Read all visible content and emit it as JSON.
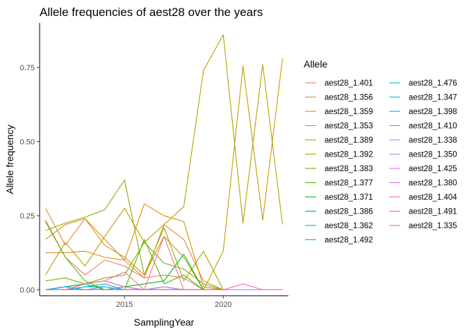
{
  "chart_data": {
    "type": "line",
    "title": "Allele frequencies of aest28 over the years",
    "xlabel": "SamplingYear",
    "ylabel": "Allele frequency",
    "xlim": [
      2010.7,
      2023.3
    ],
    "ylim": [
      -0.02,
      0.9
    ],
    "x_ticks": [
      2015,
      2020
    ],
    "x_tick_labels": [
      "2015",
      "2020"
    ],
    "y_ticks": [
      0,
      0.25,
      0.5,
      0.75
    ],
    "y_tick_labels": [
      "0.00",
      "0.25",
      "0.50",
      "0.75"
    ],
    "grid": false,
    "legend": {
      "title": "Allele",
      "position": "right",
      "columns": 2
    },
    "x": [
      2011,
      2012,
      2013,
      2014,
      2015,
      2016,
      2017,
      2018,
      2019,
      2020,
      2021,
      2022,
      2023
    ],
    "series": [
      {
        "name": "aest28_1.401",
        "color": "#F8766D",
        "values": [
          0.235,
          0.11,
          0.05,
          0.1,
          0.08,
          0.04,
          0.05,
          0.04,
          0.0,
          0.0,
          null,
          null,
          null
        ]
      },
      {
        "name": "aest28_1.356",
        "color": "#EA8331",
        "values": [
          0.275,
          0.15,
          0.24,
          0.17,
          0.1,
          0.04,
          0.22,
          0.17,
          0.03,
          0.0,
          null,
          null,
          null
        ]
      },
      {
        "name": "aest28_1.359",
        "color": "#DB8E00",
        "values": [
          0.125,
          0.125,
          0.13,
          0.11,
          0.1,
          0.29,
          0.25,
          0.23,
          0.01,
          0.0,
          null,
          null,
          null
        ]
      },
      {
        "name": "aest28_1.353",
        "color": "#C99800",
        "values": [
          0.17,
          0.22,
          0.24,
          0.15,
          0.11,
          0.05,
          0.18,
          0.11,
          0.0,
          0.13,
          0.755,
          0.235,
          0.78
        ]
      },
      {
        "name": "aest28_1.389",
        "color": "#B4A000",
        "values": [
          0.05,
          0.16,
          0.08,
          0.18,
          0.275,
          0.16,
          0.22,
          0.28,
          0.74,
          0.86,
          0.225,
          0.76,
          0.22
        ]
      },
      {
        "name": "aest28_1.392",
        "color": "#9AA800",
        "values": [
          0.2,
          0.225,
          0.245,
          0.27,
          0.37,
          0.05,
          0.21,
          0.03,
          0.13,
          0.0,
          null,
          null,
          null
        ]
      },
      {
        "name": "aest28_1.383",
        "color": "#7CAE00",
        "values": [
          0.03,
          0.04,
          0.02,
          0.04,
          0.05,
          0.16,
          0.09,
          0.07,
          0.02,
          0.0,
          null,
          null,
          null
        ]
      },
      {
        "name": "aest28_1.377",
        "color": "#53B400",
        "values": [
          0.23,
          0.11,
          0.03,
          0.0,
          0.0,
          0.17,
          0.02,
          0.05,
          0.0,
          0.0,
          null,
          null,
          null
        ]
      },
      {
        "name": "aest28_1.371",
        "color": "#00B81F",
        "values": [
          0.0,
          0.01,
          0.02,
          0.03,
          0.01,
          0.02,
          0.03,
          0.12,
          0.0,
          0.0,
          null,
          null,
          null
        ]
      },
      {
        "name": "aest28_1.386",
        "color": "#00BC59",
        "values": [
          0.0,
          0.01,
          0.02,
          0.0,
          0.01,
          0.0,
          0.01,
          0.0,
          0.0,
          0.0,
          null,
          null,
          null
        ]
      },
      {
        "name": "aest28_1.362",
        "color": "#00C08B",
        "values": [
          0.0,
          0.0,
          0.01,
          0.01,
          0.0,
          0.0,
          0.0,
          0.0,
          0.0,
          0.0,
          null,
          null,
          null
        ]
      },
      {
        "name": "aest28_1.492",
        "color": "#00C0B3",
        "values": [
          0.0,
          0.01,
          0.0,
          0.0,
          0.0,
          0.0,
          0.0,
          0.0,
          0.0,
          0.0,
          null,
          null,
          null
        ]
      },
      {
        "name": "aest28_1.476",
        "color": "#00BCD6",
        "values": [
          0.0,
          0.0,
          0.01,
          0.02,
          0.0,
          0.0,
          0.0,
          0.0,
          0.0,
          0.0,
          null,
          null,
          null
        ]
      },
      {
        "name": "aest28_1.347",
        "color": "#00B4EF",
        "values": [
          0.0,
          0.0,
          0.0,
          0.0,
          0.0,
          0.0,
          0.0,
          0.0,
          0.0,
          0.0,
          null,
          null,
          null
        ]
      },
      {
        "name": "aest28_1.398",
        "color": "#00A9FF",
        "values": [
          0.0,
          0.01,
          0.0,
          0.01,
          0.0,
          0.0,
          0.0,
          0.0,
          0.0,
          0.0,
          null,
          null,
          null
        ]
      },
      {
        "name": "aest28_1.410",
        "color": "#619CFF",
        "values": [
          0.0,
          0.0,
          0.0,
          0.01,
          0.0,
          0.0,
          0.0,
          0.0,
          0.0,
          0.0,
          null,
          null,
          null
        ]
      },
      {
        "name": "aest28_1.338",
        "color": "#9F8CFF",
        "values": [
          0.0,
          0.0,
          0.0,
          0.0,
          0.0,
          0.0,
          0.01,
          0.0,
          0.0,
          0.0,
          null,
          null,
          null
        ]
      },
      {
        "name": "aest28_1.350",
        "color": "#C77CFF",
        "values": [
          0.0,
          0.0,
          0.0,
          0.0,
          0.0,
          0.0,
          0.0,
          0.0,
          0.0,
          0.0,
          0.0,
          0.0,
          0.0
        ]
      },
      {
        "name": "aest28_1.425",
        "color": "#E56EF7",
        "values": [
          0.0,
          0.0,
          0.0,
          0.0,
          0.0,
          0.0,
          0.0,
          0.0,
          0.0,
          0.0,
          null,
          null,
          null
        ]
      },
      {
        "name": "aest28_1.380",
        "color": "#F763E0",
        "values": [
          0.0,
          0.0,
          0.02,
          0.03,
          0.01,
          0.0,
          0.0,
          0.0,
          0.0,
          0.0,
          null,
          null,
          null
        ]
      },
      {
        "name": "aest28_1.404",
        "color": "#FF62BC",
        "values": [
          0.0,
          0.0,
          0.0,
          0.0,
          0.0,
          0.0,
          0.0,
          0.0,
          0.0,
          0.0,
          0.02,
          0.0,
          0.0
        ]
      },
      {
        "name": "aest28_1.491",
        "color": "#FF6C91",
        "values": [
          0.0,
          0.0,
          0.0,
          0.0,
          0.0,
          0.0,
          0.0,
          0.0,
          0.0,
          0.0,
          null,
          null,
          null
        ]
      },
      {
        "name": "aest28_1.335",
        "color": "#FC717F",
        "values": [
          0.0,
          0.0,
          0.02,
          0.03,
          0.06,
          0.0,
          0.18,
          0.0,
          0.0,
          0.0,
          null,
          null,
          null
        ]
      }
    ]
  }
}
